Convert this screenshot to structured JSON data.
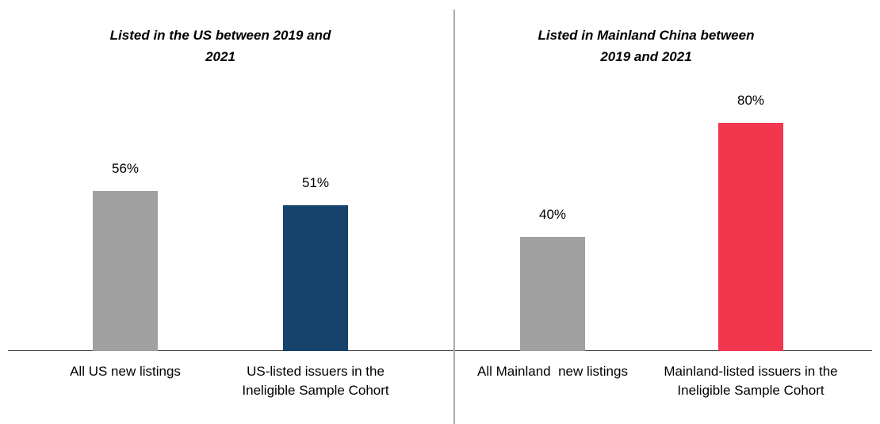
{
  "chart_data": [
    {
      "type": "bar",
      "title": "Listed in the US between 2019 and 2021",
      "categories": [
        "All US new listings",
        "US-listed issuers in the Ineligible Sample Cohort"
      ],
      "values": [
        56,
        51
      ],
      "value_labels": [
        "56%",
        "51%"
      ],
      "colors": [
        "#a0a0a0",
        "#15436b"
      ]
    },
    {
      "type": "bar",
      "title": "Listed in Mainland China between 2019 and 2021",
      "categories": [
        "All Mainland  new listings",
        "Mainland-listed issuers in the Ineligible Sample Cohort"
      ],
      "values": [
        40,
        80
      ],
      "value_labels": [
        "40%",
        "80%"
      ],
      "colors": [
        "#a0a0a0",
        "#f2364e"
      ]
    }
  ]
}
